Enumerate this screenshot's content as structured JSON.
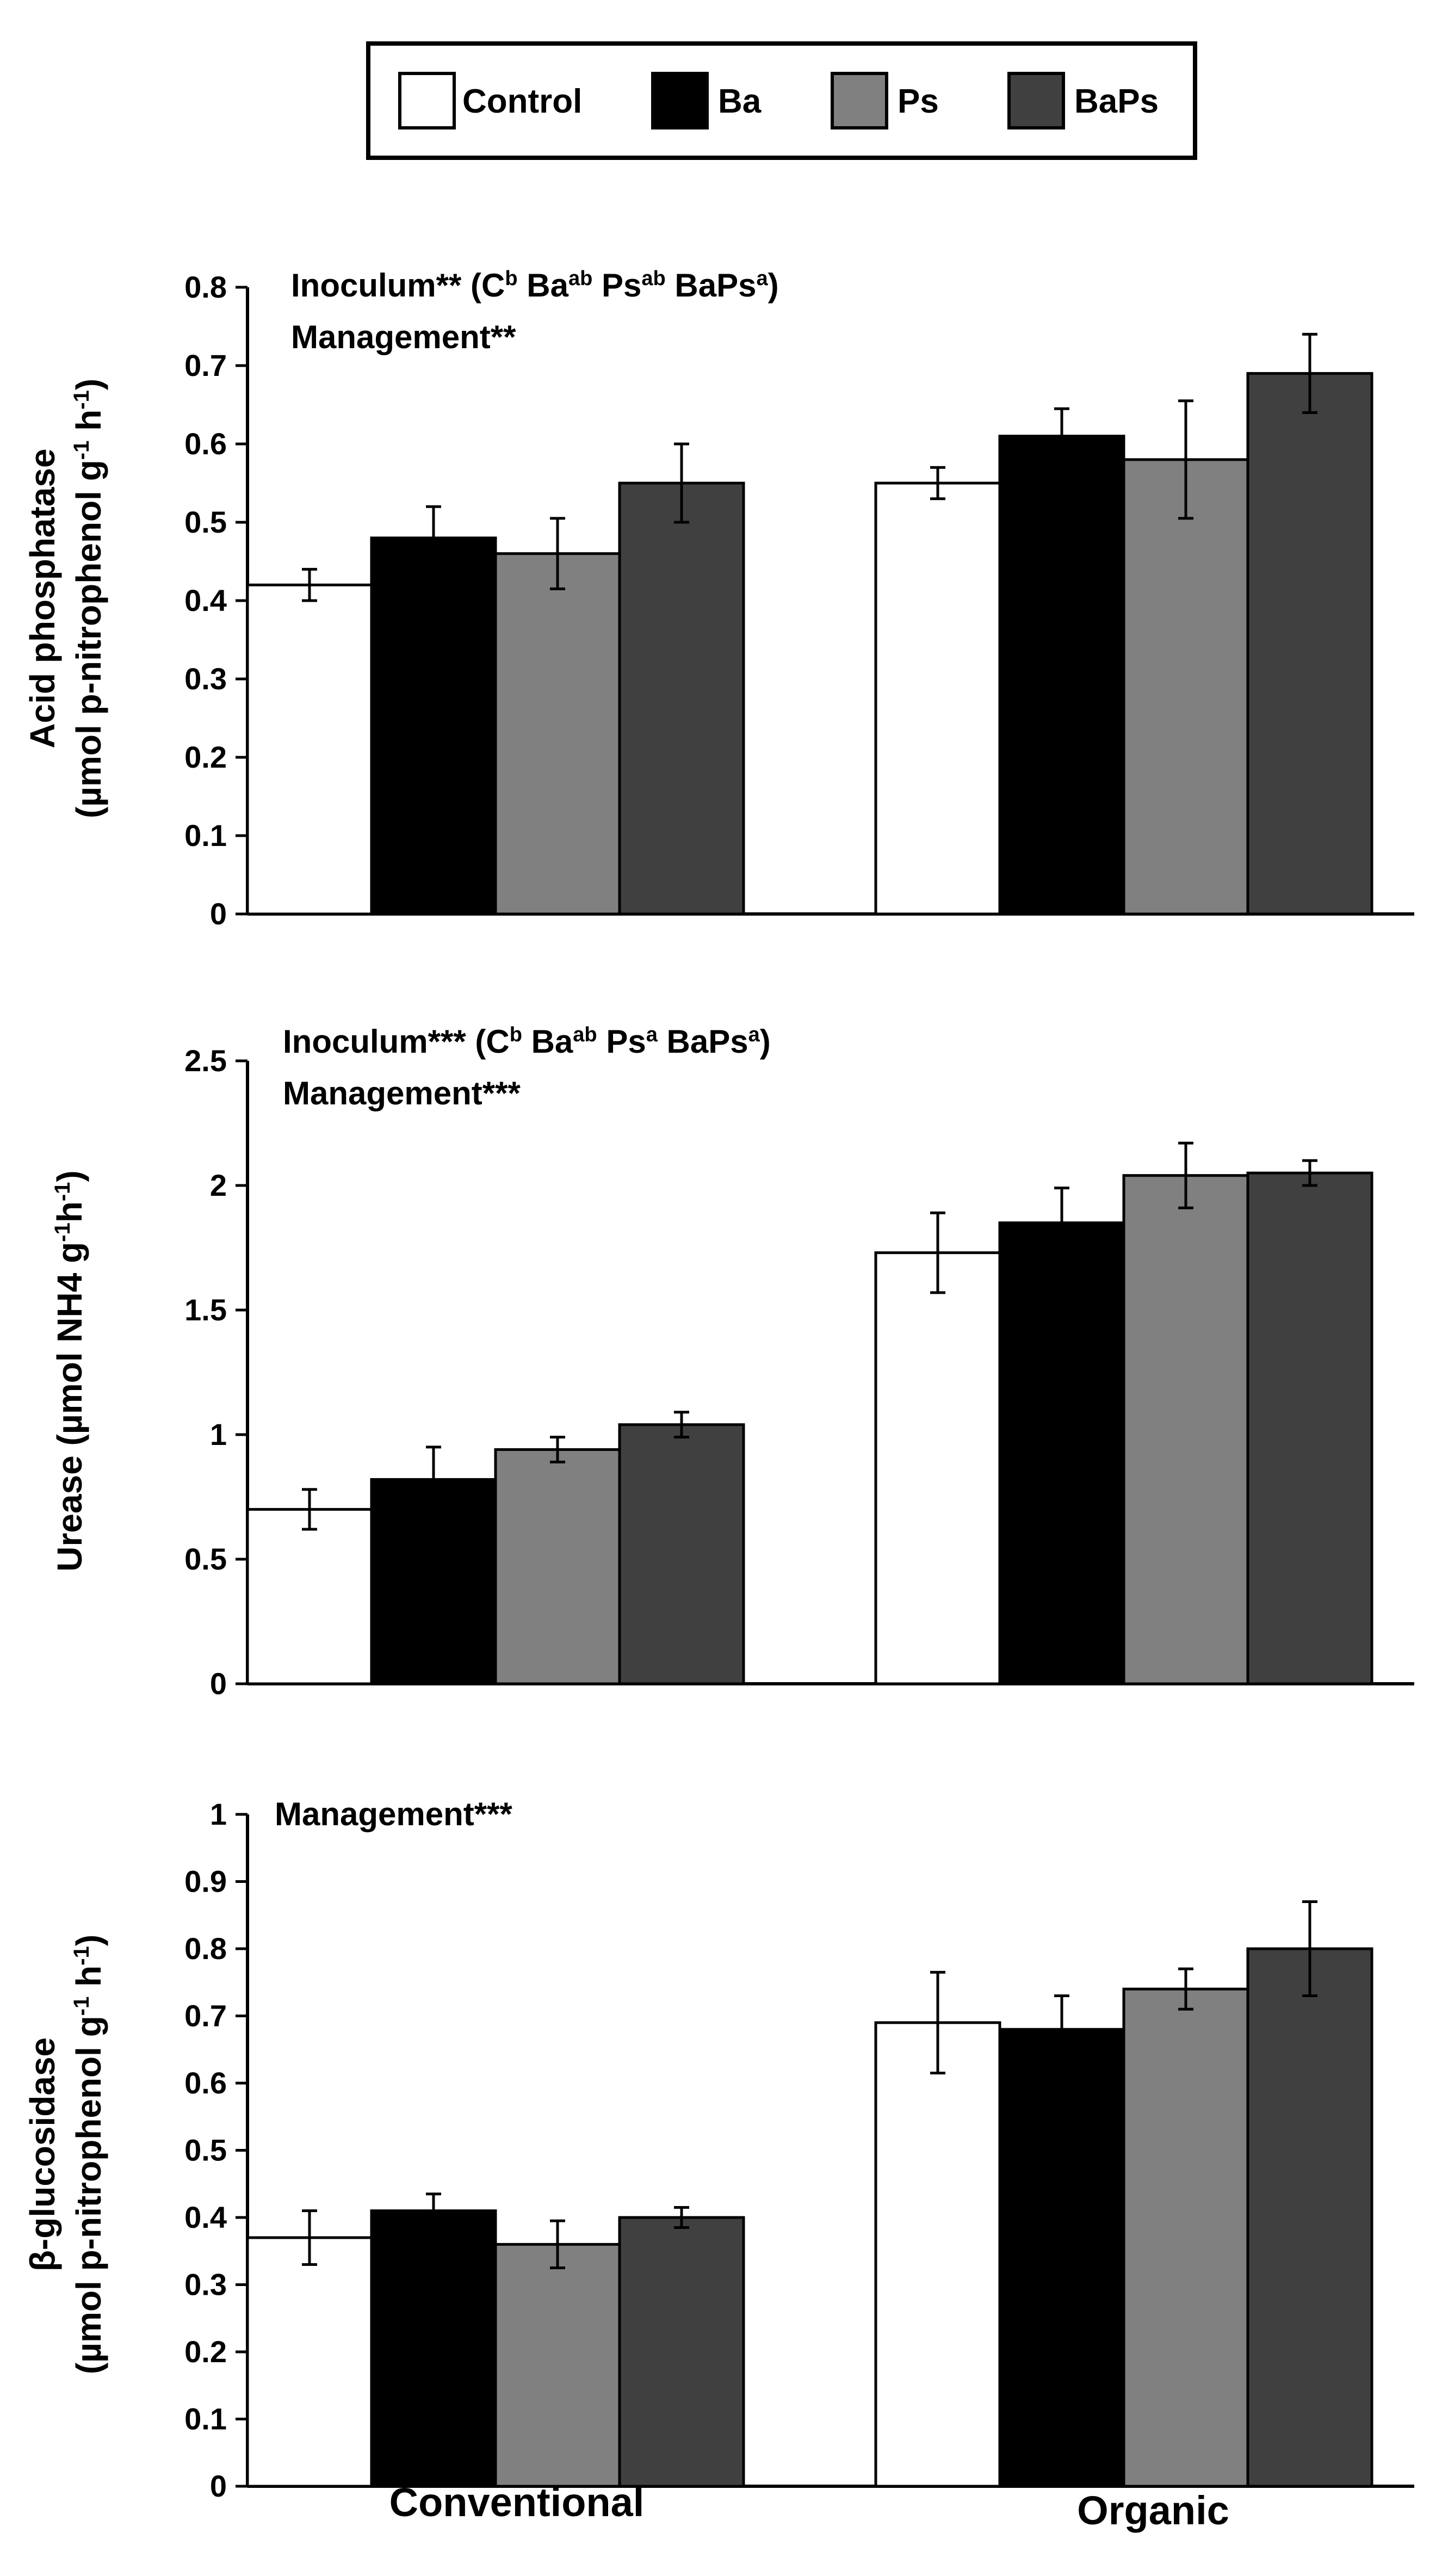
{
  "legend": [
    "Control",
    "Ba",
    "Ps",
    "BaPs"
  ],
  "colors": {
    "Control": "#ffffff",
    "Ba": "#000000",
    "Ps": "#808080",
    "BaPs": "#404040",
    "axis": "#000000"
  },
  "x_categories": [
    "Conventional",
    "Organic"
  ],
  "chart_data": [
    {
      "type": "bar",
      "title": "",
      "ylabel_lines": [
        "Acid phosphatase",
        "(µmol p-nitrophenol g-1 h-1)"
      ],
      "ylabel_superscripts": [
        "-1",
        "-1"
      ],
      "categories": [
        "Conventional",
        "Organic"
      ],
      "ylim": [
        0,
        0.8
      ],
      "yticks": [
        "0",
        "0.1",
        "0.2",
        "0.3",
        "0.4",
        "0.5",
        "0.6",
        "0.7",
        "0.8"
      ],
      "series": [
        {
          "name": "Control",
          "values": [
            0.42,
            0.55
          ],
          "errors": [
            0.02,
            0.02
          ]
        },
        {
          "name": "Ba",
          "values": [
            0.48,
            0.61
          ],
          "errors": [
            0.04,
            0.035
          ]
        },
        {
          "name": "Ps",
          "values": [
            0.46,
            0.58
          ],
          "errors": [
            0.045,
            0.075
          ]
        },
        {
          "name": "BaPs",
          "values": [
            0.55,
            0.69
          ],
          "errors": [
            0.05,
            0.05
          ]
        }
      ],
      "annotations": [
        "Inoculum** (Cb Baab Psab BaPsa)",
        "Management**"
      ]
    },
    {
      "type": "bar",
      "title": "",
      "ylabel_lines": [
        "Urease (µmol NH4 g-1h-1)"
      ],
      "ylabel_superscripts": [
        "-1",
        "-1"
      ],
      "categories": [
        "Conventional",
        "Organic"
      ],
      "ylim": [
        0,
        2.5
      ],
      "yticks": [
        "0",
        "0.5",
        "1",
        "1.5",
        "2",
        "2.5"
      ],
      "series": [
        {
          "name": "Control",
          "values": [
            0.7,
            1.73
          ],
          "errors": [
            0.08,
            0.16
          ]
        },
        {
          "name": "Ba",
          "values": [
            0.82,
            1.85
          ],
          "errors": [
            0.13,
            0.14
          ]
        },
        {
          "name": "Ps",
          "values": [
            0.94,
            2.04
          ],
          "errors": [
            0.05,
            0.13
          ]
        },
        {
          "name": "BaPs",
          "values": [
            1.04,
            2.05
          ],
          "errors": [
            0.05,
            0.05
          ]
        }
      ],
      "annotations": [
        "Inoculum*** (Cb Baab Psa BaPsa)",
        "Management***"
      ]
    },
    {
      "type": "bar",
      "title": "",
      "ylabel_lines": [
        "β-glucosidase",
        "(µmol p-nitrophenol g-1 h-1)"
      ],
      "ylabel_superscripts": [
        "-1",
        "-1"
      ],
      "categories": [
        "Conventional",
        "Organic"
      ],
      "ylim": [
        0,
        1
      ],
      "yticks": [
        "0",
        "0.1",
        "0.2",
        "0.3",
        "0.4",
        "0.5",
        "0.6",
        "0.7",
        "0.8",
        "0.9",
        "1"
      ],
      "series": [
        {
          "name": "Control",
          "values": [
            0.37,
            0.69
          ],
          "errors": [
            0.04,
            0.075
          ]
        },
        {
          "name": "Ba",
          "values": [
            0.41,
            0.68
          ],
          "errors": [
            0.025,
            0.05
          ]
        },
        {
          "name": "Ps",
          "values": [
            0.36,
            0.74
          ],
          "errors": [
            0.035,
            0.03
          ]
        },
        {
          "name": "BaPs",
          "values": [
            0.4,
            0.8
          ],
          "errors": [
            0.015,
            0.07
          ]
        }
      ],
      "annotations": [
        "Management***"
      ]
    }
  ]
}
